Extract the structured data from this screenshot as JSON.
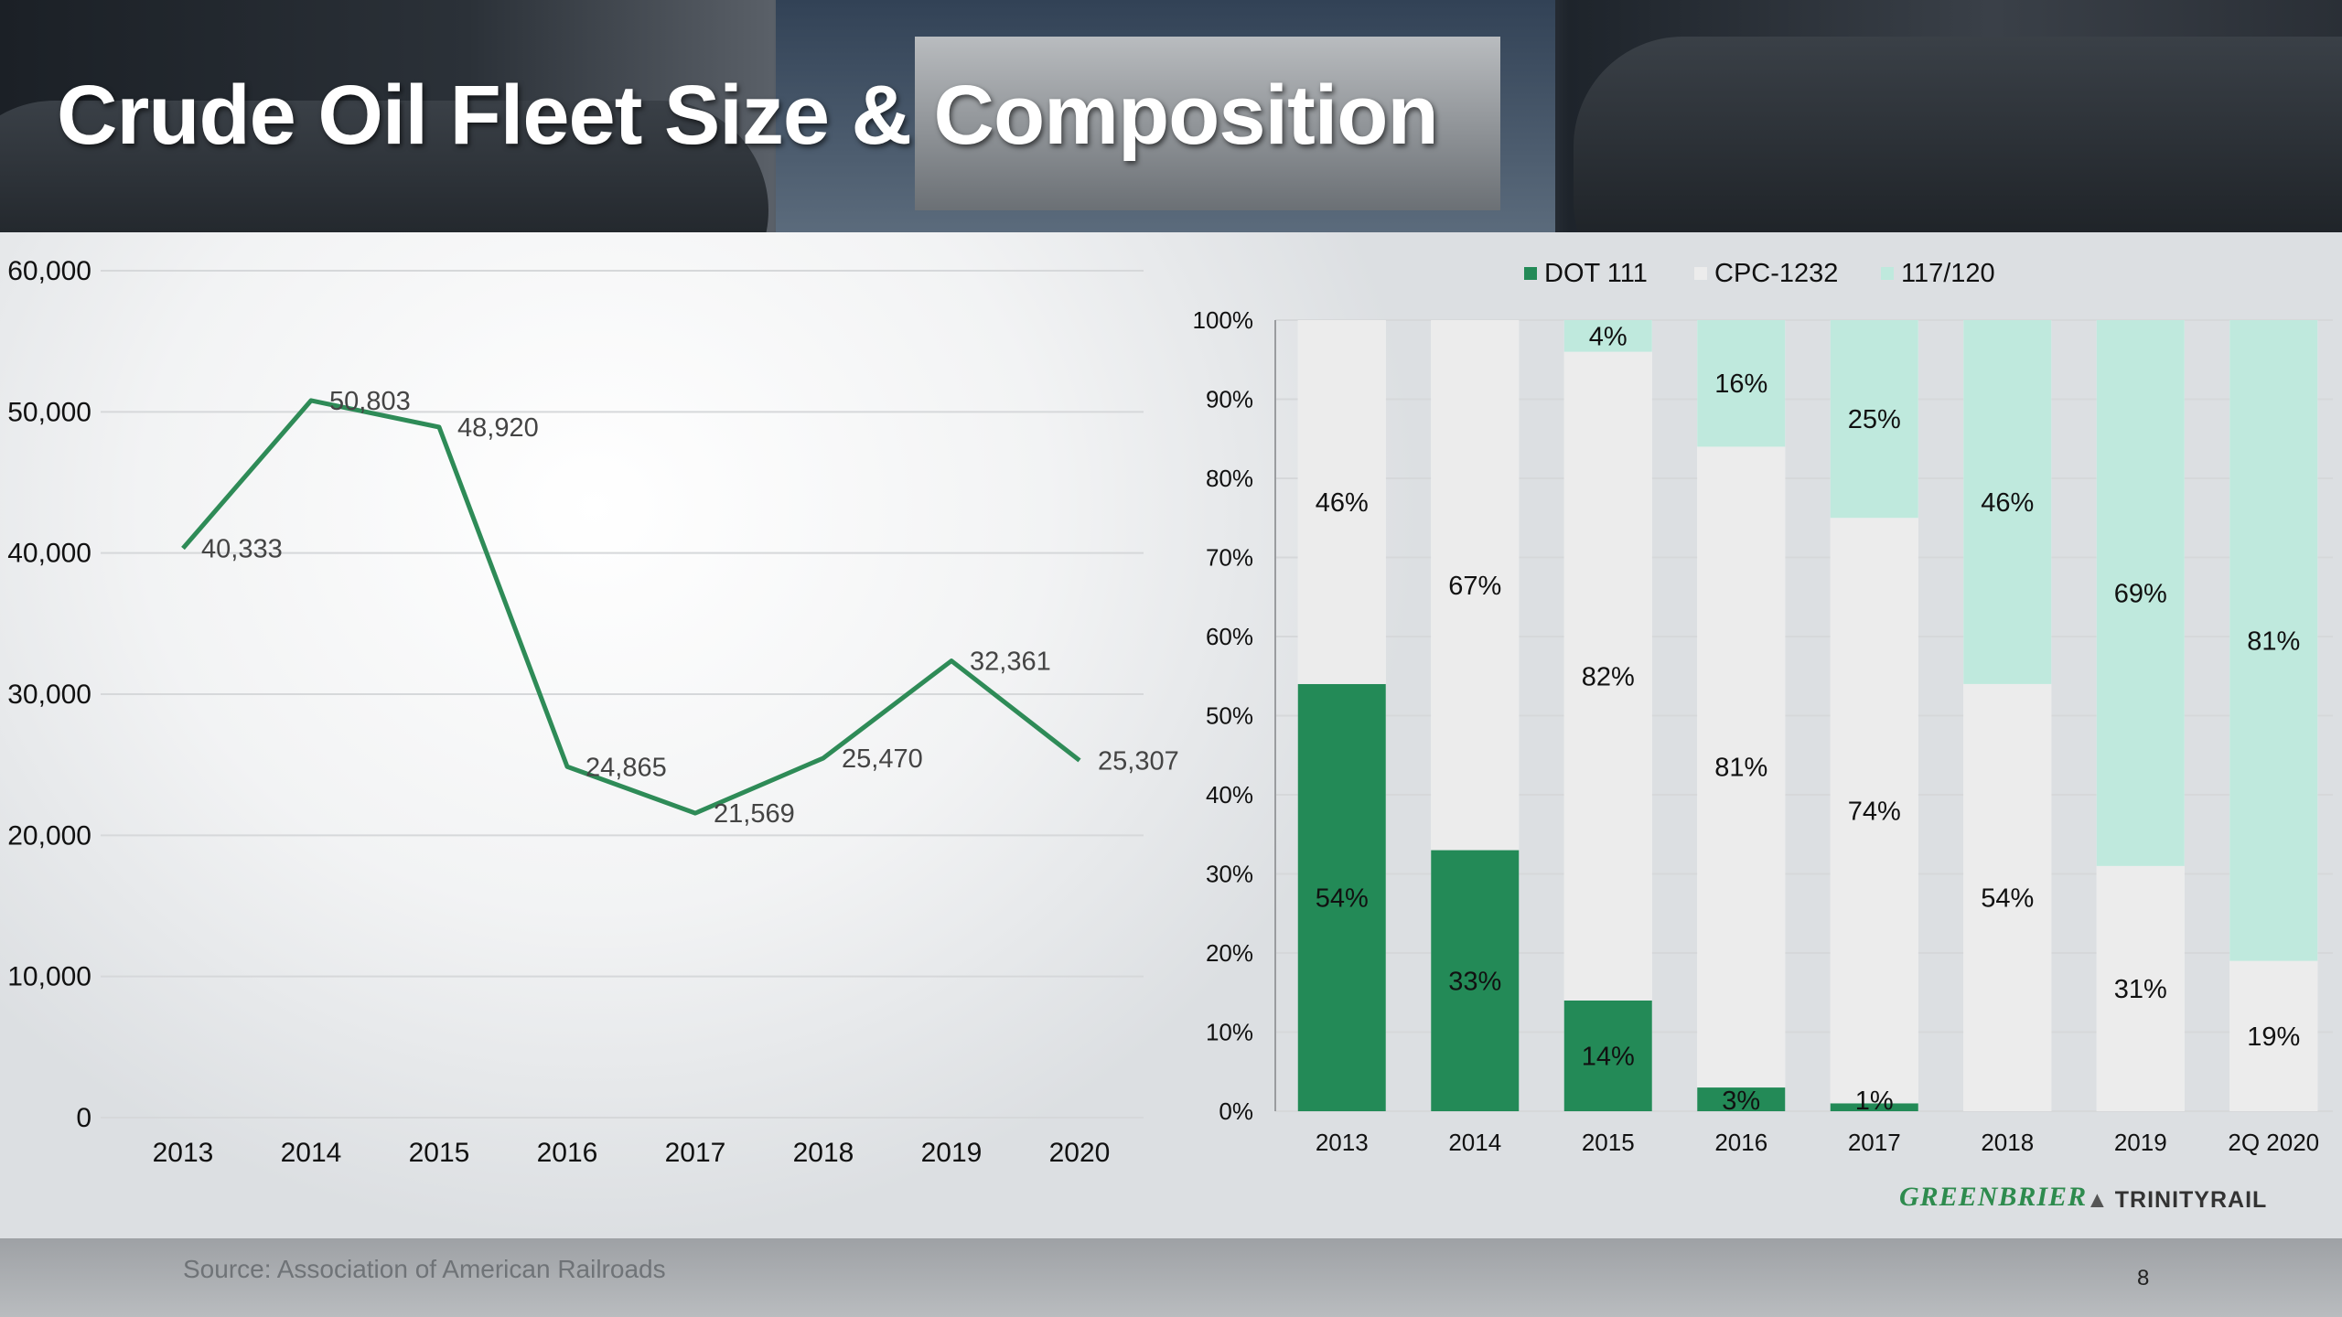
{
  "title": "Crude Oil Fleet Size & Composition",
  "source": "Source: Association of American Railroads",
  "page_number": "8",
  "logos": {
    "greenbrier": "GREENBRIER",
    "trinity": "TRINITYRAIL"
  },
  "colors": {
    "line": "#2e8b57",
    "dot111": "#238a57",
    "cpc1232": "#ececec",
    "r117_120": "#bfe9dd",
    "grid": "#d6d8da"
  },
  "chart_data": [
    {
      "type": "line",
      "title": "",
      "xlabel": "",
      "ylabel": "",
      "ylim": [
        0,
        60000
      ],
      "y_ticks": [
        "0",
        "10,000",
        "20,000",
        "30,000",
        "40,000",
        "50,000",
        "60,000"
      ],
      "categories": [
        "2013",
        "2014",
        "2015",
        "2016",
        "2017",
        "2018",
        "2019",
        "2020"
      ],
      "values": [
        40333,
        50803,
        48920,
        24865,
        21569,
        25470,
        32361,
        25307
      ],
      "labels": [
        "40,333",
        "50,803",
        "48,920",
        "24,865",
        "21,569",
        "25,470",
        "32,361",
        "25,307"
      ],
      "grid": true
    },
    {
      "type": "bar",
      "stacked": true,
      "title": "",
      "ylim": [
        0,
        100
      ],
      "y_ticks": [
        "0%",
        "10%",
        "20%",
        "30%",
        "40%",
        "50%",
        "60%",
        "70%",
        "80%",
        "90%",
        "100%"
      ],
      "legend_position": "top-right",
      "categories": [
        "2013",
        "2014",
        "2015",
        "2016",
        "2017",
        "2018",
        "2019",
        "2Q 2020"
      ],
      "series": [
        {
          "name": "DOT 111",
          "values": [
            54,
            33,
            14,
            3,
            1,
            0,
            0,
            0
          ],
          "labels": [
            "54%",
            "33%",
            "14%",
            "3%",
            "1%",
            "",
            "",
            ""
          ]
        },
        {
          "name": "CPC-1232",
          "values": [
            46,
            67,
            82,
            81,
            74,
            54,
            31,
            19
          ],
          "labels": [
            "46%",
            "67%",
            "82%",
            "81%",
            "74%",
            "54%",
            "31%",
            "19%"
          ]
        },
        {
          "name": "117/120",
          "values": [
            0,
            0,
            4,
            16,
            25,
            46,
            69,
            81
          ],
          "labels": [
            "",
            "",
            "4%",
            "16%",
            "25%",
            "46%",
            "69%",
            "81%"
          ]
        }
      ]
    }
  ]
}
